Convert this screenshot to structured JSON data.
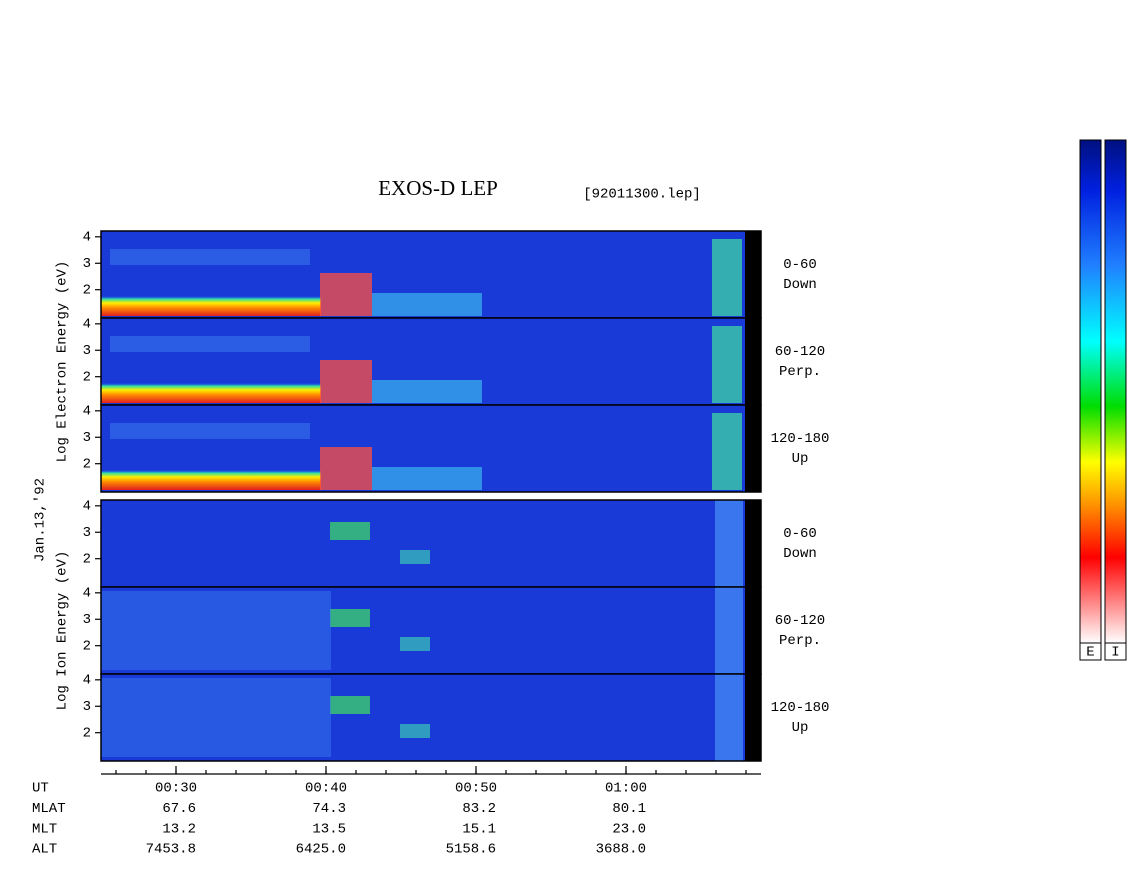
{
  "chart_data": {
    "type": "spectrogram",
    "title": "EXOS-D LEP",
    "file": "[92011300.lep]",
    "date": "Jan.13,'92",
    "xlim": [
      25,
      69
    ],
    "xticks": [
      {
        "value": 30,
        "label": "00:30"
      },
      {
        "value": 40,
        "label": "00:40"
      },
      {
        "value": 50,
        "label": "00:50"
      },
      {
        "value": 60,
        "label": "01:00"
      }
    ],
    "minor_xtick_step": 2,
    "groups": [
      {
        "ylabel": "Log Electron Energy (eV)",
        "panels": [
          {
            "label": "0-60",
            "sublabel": "Down",
            "ylim": [
              0.93,
              4.22
            ],
            "yticks": [
              2,
              3,
              4
            ]
          },
          {
            "label": "60-120",
            "sublabel": "Perp.",
            "ylim": [
              0.93,
              4.22
            ],
            "yticks": [
              2,
              3,
              4
            ]
          },
          {
            "label": "120-180",
            "sublabel": "Up",
            "ylim": [
              0.93,
              4.22
            ],
            "yticks": [
              2,
              3,
              4
            ]
          }
        ]
      },
      {
        "ylabel": "Log Ion Energy (eV)",
        "panels": [
          {
            "label": "0-60",
            "sublabel": "Down",
            "ylim": [
              0.93,
              4.22
            ],
            "yticks": [
              2,
              3,
              4
            ]
          },
          {
            "label": "60-120",
            "sublabel": "Perp.",
            "ylim": [
              0.93,
              4.22
            ],
            "yticks": [
              2,
              3,
              4
            ]
          },
          {
            "label": "120-180",
            "sublabel": "Up",
            "ylim": [
              0.93,
              4.22
            ],
            "yticks": [
              2,
              3,
              4
            ]
          }
        ]
      }
    ],
    "ephemeris": [
      {
        "name": "UT",
        "values": []
      },
      {
        "name": "MLAT",
        "values": [
          "67.6",
          "74.3",
          "83.2",
          "80.1"
        ]
      },
      {
        "name": "MLT",
        "values": [
          "13.2",
          "13.5",
          "15.1",
          "23.0"
        ]
      },
      {
        "name": "ALT",
        "values": [
          "7453.8",
          "6425.0",
          "5158.6",
          "3688.0"
        ]
      }
    ],
    "colorbars": [
      "E",
      "I"
    ]
  }
}
